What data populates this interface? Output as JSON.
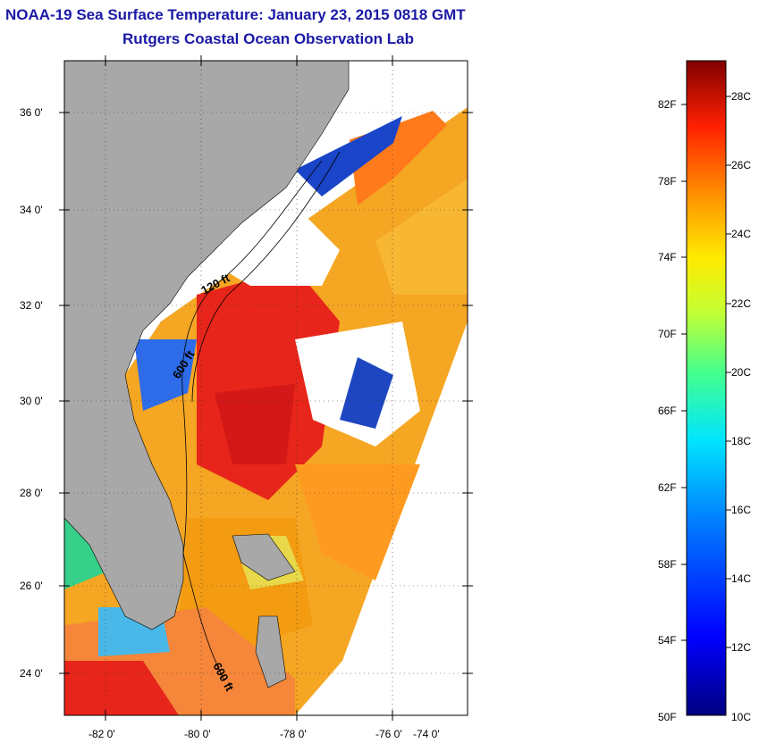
{
  "title": "NOAA-19 Sea Surface Temperature:  January 23, 2015 0818 GMT",
  "subtitle": "Rutgers Coastal Ocean Observation Lab",
  "lat_labels": [
    "36 0'",
    "34 0'",
    "32 0'",
    "30 0'",
    "28 0'",
    "26 0'",
    "24 0'"
  ],
  "lon_labels": [
    "-82 0'",
    "-80 0'",
    "-78 0'",
    "-76 0'",
    "-74 0'"
  ],
  "contour_labels": [
    "120 ft",
    "600 ft",
    "600 ft"
  ],
  "colorbar": {
    "fahrenheit": [
      "82F",
      "78F",
      "74F",
      "70F",
      "66F",
      "62F",
      "58F",
      "54F",
      "50F"
    ],
    "celsius": [
      "28C",
      "26C",
      "24C",
      "22C",
      "20C",
      "18C",
      "16C",
      "14C",
      "12C",
      "10C"
    ]
  },
  "colors": {
    "title": "#1a1aa6",
    "land": "#a8a8a8",
    "cloud": "#ffffff",
    "warm": "#e8251a",
    "cold": "#00109a"
  }
}
